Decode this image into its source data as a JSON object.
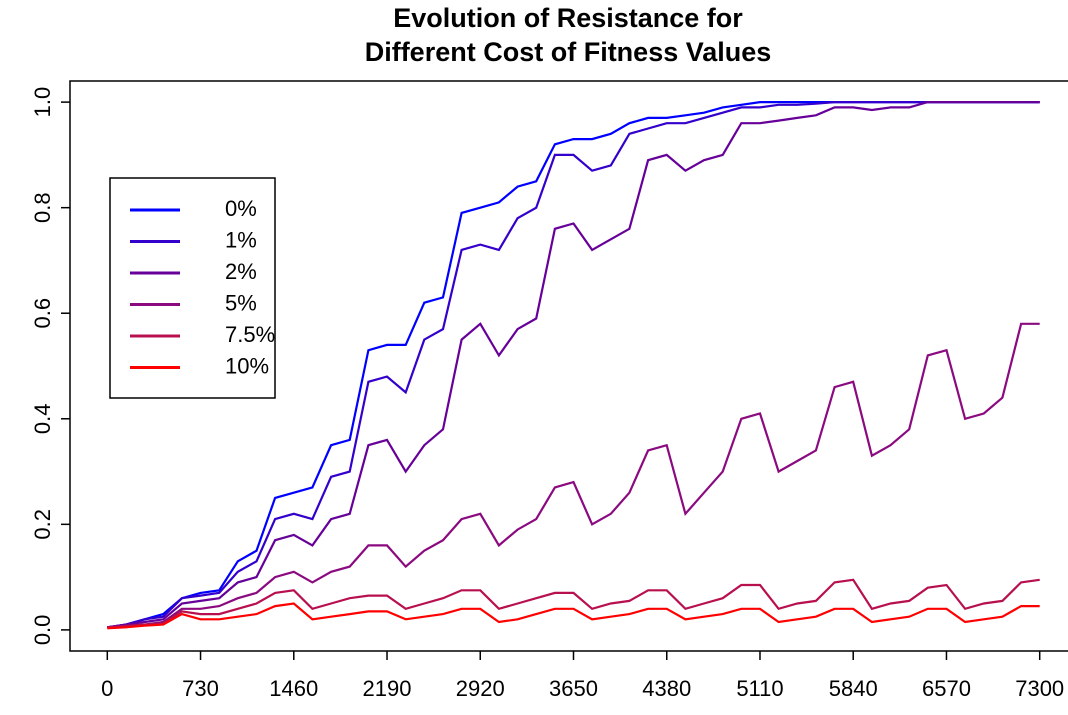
{
  "chart_data": {
    "type": "line",
    "title": [
      "Evolution of Resistance for",
      "Different Cost of Fitness Values"
    ],
    "x": [
      0,
      146,
      292,
      438,
      584,
      730,
      876,
      1022,
      1168,
      1314,
      1460,
      1606,
      1752,
      1898,
      2044,
      2190,
      2336,
      2482,
      2628,
      2774,
      2920,
      3066,
      3212,
      3358,
      3504,
      3650,
      3796,
      3942,
      4088,
      4234,
      4380,
      4526,
      4672,
      4818,
      4964,
      5110,
      5256,
      5402,
      5548,
      5694,
      5840,
      5986,
      6132,
      6278,
      6424,
      6570,
      6716,
      6862,
      7008,
      7154,
      7300
    ],
    "series": [
      {
        "name": "0%",
        "color": "#0000ff",
        "values": [
          0.005,
          0.01,
          0.02,
          0.03,
          0.06,
          0.07,
          0.075,
          0.13,
          0.15,
          0.25,
          0.26,
          0.27,
          0.35,
          0.36,
          0.53,
          0.54,
          0.54,
          0.62,
          0.63,
          0.79,
          0.8,
          0.81,
          0.84,
          0.85,
          0.92,
          0.93,
          0.93,
          0.94,
          0.96,
          0.97,
          0.97,
          0.975,
          0.98,
          0.99,
          0.995,
          1,
          1,
          1,
          1,
          1,
          1,
          1,
          1,
          1,
          1,
          1,
          1,
          1,
          1,
          1,
          1
        ]
      },
      {
        "name": "1%",
        "color": "#3300cc",
        "values": [
          0.005,
          0.01,
          0.02,
          0.025,
          0.06,
          0.065,
          0.07,
          0.11,
          0.13,
          0.21,
          0.22,
          0.21,
          0.29,
          0.3,
          0.47,
          0.48,
          0.45,
          0.55,
          0.57,
          0.72,
          0.73,
          0.72,
          0.78,
          0.8,
          0.9,
          0.9,
          0.87,
          0.88,
          0.94,
          0.95,
          0.96,
          0.96,
          0.97,
          0.98,
          0.99,
          0.99,
          0.995,
          0.995,
          0.997,
          1,
          1,
          1,
          1,
          1,
          1,
          1,
          1,
          1,
          1,
          1,
          1
        ]
      },
      {
        "name": "2%",
        "color": "#660099",
        "values": [
          0.005,
          0.01,
          0.015,
          0.02,
          0.05,
          0.055,
          0.06,
          0.09,
          0.1,
          0.17,
          0.18,
          0.16,
          0.21,
          0.22,
          0.35,
          0.36,
          0.3,
          0.35,
          0.38,
          0.55,
          0.58,
          0.52,
          0.57,
          0.59,
          0.76,
          0.77,
          0.72,
          0.74,
          0.76,
          0.89,
          0.9,
          0.87,
          0.89,
          0.9,
          0.96,
          0.96,
          0.965,
          0.97,
          0.975,
          0.99,
          0.99,
          0.985,
          0.99,
          0.99,
          1,
          1,
          1,
          1,
          1,
          1,
          1
        ]
      },
      {
        "name": "5%",
        "color": "#8b0a80",
        "values": [
          0.005,
          0.008,
          0.01,
          0.015,
          0.04,
          0.04,
          0.045,
          0.06,
          0.07,
          0.1,
          0.11,
          0.09,
          0.11,
          0.12,
          0.16,
          0.16,
          0.12,
          0.15,
          0.17,
          0.21,
          0.22,
          0.16,
          0.19,
          0.21,
          0.27,
          0.28,
          0.2,
          0.22,
          0.26,
          0.34,
          0.35,
          0.22,
          0.26,
          0.3,
          0.4,
          0.41,
          0.3,
          0.32,
          0.34,
          0.46,
          0.47,
          0.33,
          0.35,
          0.38,
          0.52,
          0.53,
          0.4,
          0.41,
          0.44,
          0.58,
          0.58
        ]
      },
      {
        "name": "7.5%",
        "color": "#b8104f",
        "values": [
          0.005,
          0.007,
          0.01,
          0.012,
          0.035,
          0.03,
          0.03,
          0.04,
          0.05,
          0.07,
          0.075,
          0.04,
          0.05,
          0.06,
          0.065,
          0.065,
          0.04,
          0.05,
          0.06,
          0.075,
          0.075,
          0.04,
          0.05,
          0.06,
          0.07,
          0.07,
          0.04,
          0.05,
          0.055,
          0.075,
          0.075,
          0.04,
          0.05,
          0.06,
          0.085,
          0.085,
          0.04,
          0.05,
          0.055,
          0.09,
          0.095,
          0.04,
          0.05,
          0.055,
          0.08,
          0.085,
          0.04,
          0.05,
          0.055,
          0.09,
          0.095
        ]
      },
      {
        "name": "10%",
        "color": "#ff0000",
        "values": [
          0.003,
          0.005,
          0.008,
          0.01,
          0.03,
          0.02,
          0.02,
          0.025,
          0.03,
          0.045,
          0.05,
          0.02,
          0.025,
          0.03,
          0.035,
          0.035,
          0.02,
          0.025,
          0.03,
          0.04,
          0.04,
          0.015,
          0.02,
          0.03,
          0.04,
          0.04,
          0.02,
          0.025,
          0.03,
          0.04,
          0.04,
          0.02,
          0.025,
          0.03,
          0.04,
          0.04,
          0.015,
          0.02,
          0.025,
          0.04,
          0.04,
          0.015,
          0.02,
          0.025,
          0.04,
          0.04,
          0.015,
          0.02,
          0.025,
          0.045,
          0.045
        ]
      }
    ],
    "xlim": [
      -292,
      7592
    ],
    "ylim": [
      -0.04,
      1.04
    ],
    "xticks": [
      0,
      730,
      1460,
      2190,
      2920,
      3650,
      4380,
      5110,
      5840,
      6570,
      7300
    ],
    "yticks": [
      {
        "value": 0,
        "label": "0.0"
      },
      0.2,
      0.4,
      0.6,
      0.8,
      {
        "value": 1,
        "label": "1.0"
      }
    ],
    "legend": "left"
  }
}
